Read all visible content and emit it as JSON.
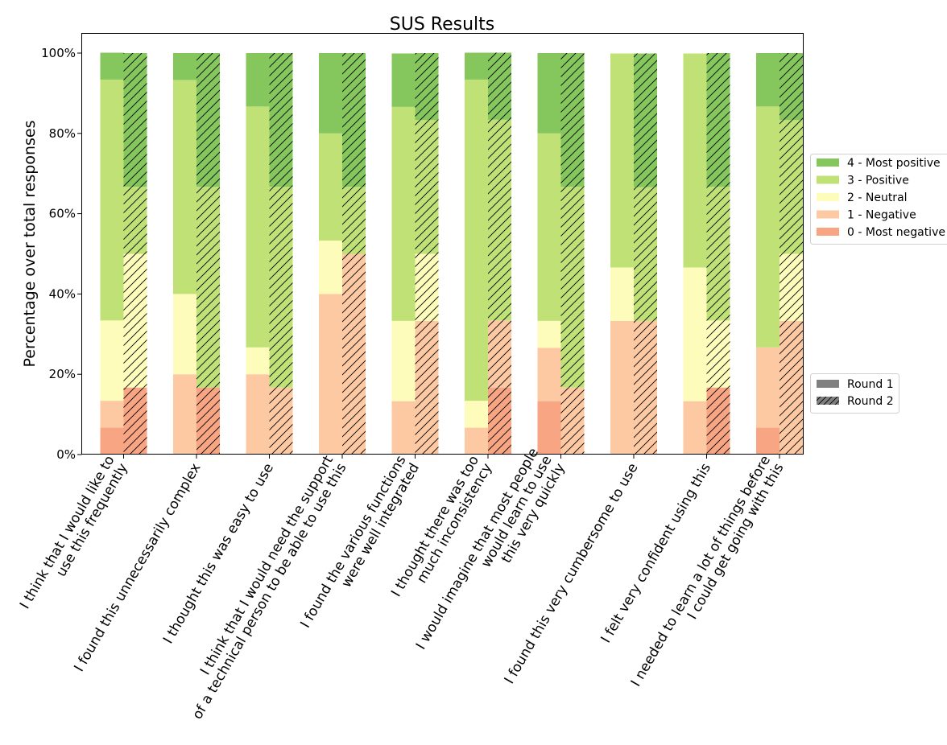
{
  "chart_data": {
    "type": "bar",
    "stacked": true,
    "title": "SUS Results",
    "xlabel": "",
    "ylabel": "Percentage over total responses",
    "ylim": [
      0,
      100
    ],
    "yticks": [
      "0%",
      "20%",
      "40%",
      "60%",
      "80%",
      "100%"
    ],
    "grid": false,
    "legend_position": "right",
    "categories": [
      [
        "I think that I would like to",
        "use this frequently"
      ],
      [
        "I found this unnecessarily complex"
      ],
      [
        "I thought this was easy to use"
      ],
      [
        "I think that I would need the support",
        "of a technical person to be able to use this"
      ],
      [
        "I found the various functions",
        "were well integrated"
      ],
      [
        "I thought there was too",
        "much inconsistency"
      ],
      [
        "I would imagine that most people",
        "would learn to use",
        "this very quickly"
      ],
      [
        "I found this very cumbersome to use"
      ],
      [
        "I felt very confident using this"
      ],
      [
        "I needed to learn a lot of things before",
        "I could get going with this"
      ]
    ],
    "levels": [
      {
        "name": "0 - Most negative",
        "color": "#f7a582"
      },
      {
        "name": "1 - Negative",
        "color": "#fdc9a2"
      },
      {
        "name": "2 - Neutral",
        "color": "#fefcbb"
      },
      {
        "name": "3 - Positive",
        "color": "#c0e176"
      },
      {
        "name": "4 - Most positive",
        "color": "#85c75d"
      }
    ],
    "legend_order": [
      "4 - Most positive",
      "3 - Positive",
      "2 - Neutral",
      "1 - Negative",
      "0 - Most negative"
    ],
    "rounds": [
      {
        "name": "Round 1",
        "hatched": false,
        "values": [
          [
            6.7,
            6.7,
            20.0,
            60.0,
            6.7
          ],
          [
            0,
            20.0,
            20.0,
            53.3,
            6.7
          ],
          [
            0,
            20.0,
            6.7,
            60.0,
            13.3
          ],
          [
            0,
            40.0,
            13.3,
            26.7,
            20.0
          ],
          [
            0,
            13.3,
            20.0,
            53.3,
            13.3
          ],
          [
            0,
            6.7,
            6.7,
            80.0,
            6.7
          ],
          [
            13.3,
            13.3,
            6.7,
            46.7,
            20.0
          ],
          [
            0,
            33.3,
            13.3,
            53.3,
            0
          ],
          [
            0,
            13.3,
            33.3,
            53.3,
            0
          ],
          [
            6.7,
            20.0,
            0,
            60.0,
            13.3
          ]
        ]
      },
      {
        "name": "Round 2",
        "hatched": true,
        "values": [
          [
            16.7,
            0,
            33.3,
            16.7,
            33.3
          ],
          [
            16.7,
            0,
            0,
            50.0,
            33.3
          ],
          [
            0,
            16.7,
            0,
            50.0,
            33.3
          ],
          [
            0,
            50.0,
            0,
            16.7,
            33.3
          ],
          [
            0,
            33.3,
            16.7,
            33.3,
            16.7
          ],
          [
            16.7,
            16.7,
            0,
            50.0,
            16.7
          ],
          [
            0,
            16.7,
            0,
            50.0,
            33.3
          ],
          [
            0,
            33.3,
            0,
            33.3,
            33.3
          ],
          [
            16.7,
            0,
            16.7,
            33.3,
            33.3
          ],
          [
            0,
            33.3,
            16.7,
            33.3,
            16.7
          ]
        ]
      }
    ]
  }
}
